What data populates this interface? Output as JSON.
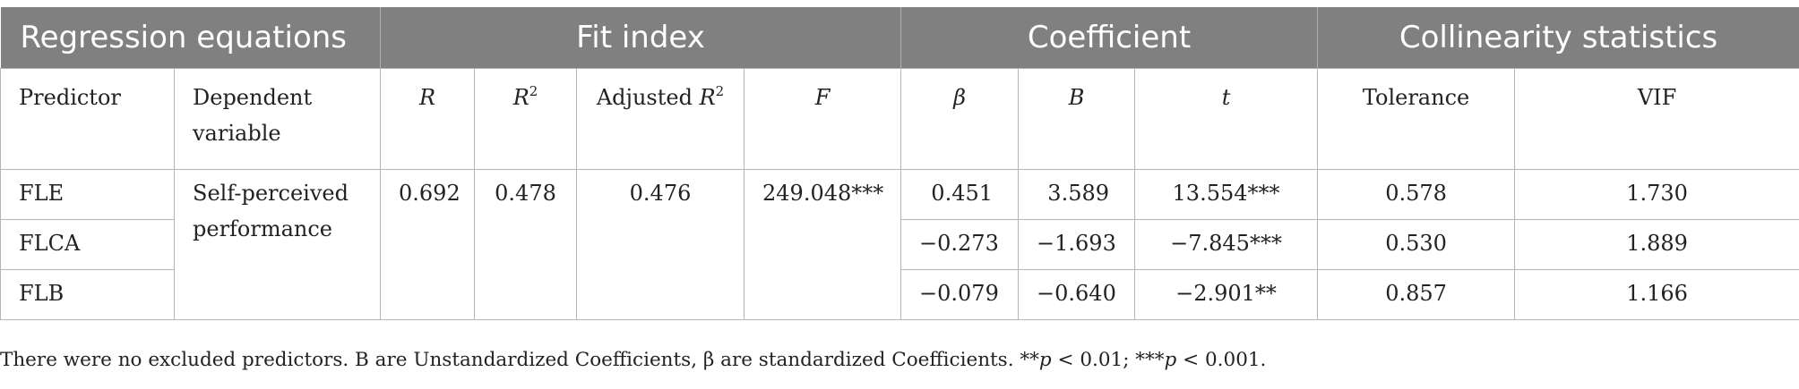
{
  "groups": {
    "regression": "Regression equations",
    "fit": "Fit index",
    "coef": "Coefficient",
    "collin": "Collinearity statistics"
  },
  "headers": {
    "predictor": "Predictor",
    "dependent": "Dependent variable",
    "r": "R",
    "r2_base": "R",
    "r2_sup": "2",
    "adj_prefix": "Adjusted ",
    "adj_base": "R",
    "adj_sup": "2",
    "f": "F",
    "beta": "β",
    "b": "B",
    "t": "t",
    "tolerance": "Tolerance",
    "vif": "VIF"
  },
  "merged": {
    "dependent": "Self-perceived performance",
    "r": "0.692",
    "r2": "0.478",
    "adj": "0.476",
    "f": "249.048***"
  },
  "rows": [
    {
      "predictor": "FLE",
      "beta": "0.451",
      "b": "3.589",
      "t": "13.554***",
      "tolerance": "0.578",
      "vif": "1.730"
    },
    {
      "predictor": "FLCA",
      "beta": "−0.273",
      "b": "−1.693",
      "t": "−7.845***",
      "tolerance": "0.530",
      "vif": "1.889"
    },
    {
      "predictor": "FLB",
      "beta": "−0.079",
      "b": "−0.640",
      "t": "−2.901**",
      "tolerance": "0.857",
      "vif": "1.166"
    }
  ],
  "note": {
    "text": "There were no excluded predictors. B are Unstandardized Coefficients, β are standardized Coefficients. **",
    "p1": "p",
    "mid": " < 0.01; ***",
    "p2": "p",
    "end": " < 0.001."
  }
}
